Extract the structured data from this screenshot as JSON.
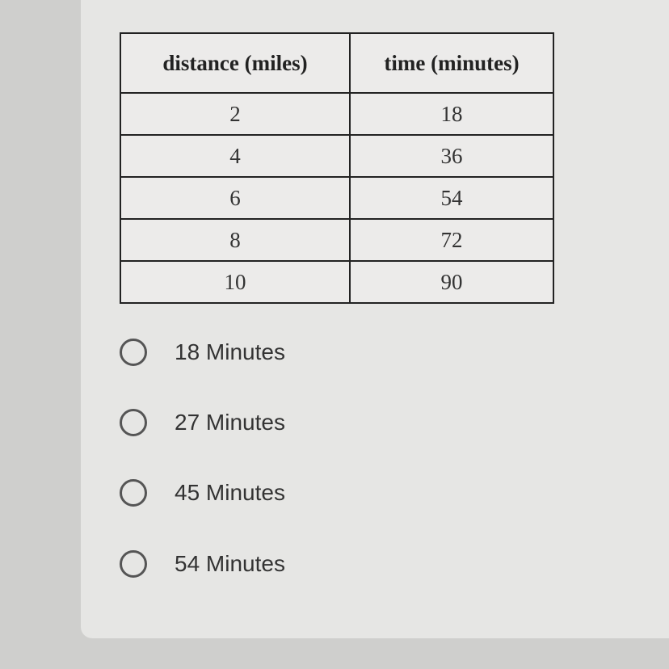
{
  "table": {
    "headers": [
      "distance (miles)",
      "time (minutes)"
    ],
    "rows": [
      [
        "2",
        "18"
      ],
      [
        "4",
        "36"
      ],
      [
        "6",
        "54"
      ],
      [
        "8",
        "72"
      ],
      [
        "10",
        "90"
      ]
    ]
  },
  "options": [
    {
      "label": "18 Minutes",
      "selected": false
    },
    {
      "label": "27 Minutes",
      "selected": false
    },
    {
      "label": "45 Minutes",
      "selected": false
    },
    {
      "label": "54 Minutes",
      "selected": false
    }
  ]
}
